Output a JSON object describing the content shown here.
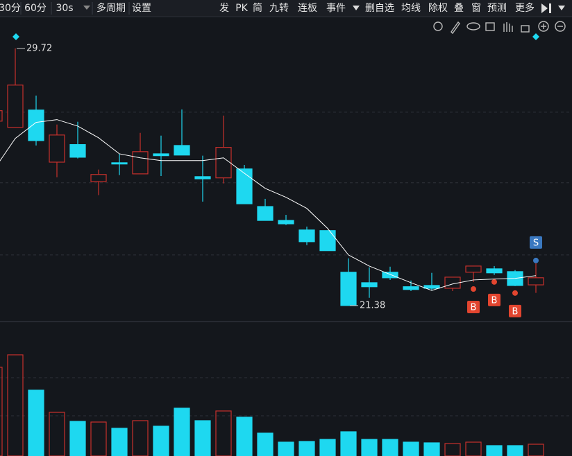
{
  "toolbar": {
    "left": [
      "30分",
      "60分",
      "30s",
      "多周期",
      "设置"
    ],
    "right": [
      "发",
      "PK",
      "简",
      "九转",
      "连板",
      "事件",
      "删自选",
      "均线",
      "除权",
      "叠",
      "窗",
      "预测",
      "更多"
    ]
  },
  "chart_data": {
    "type": "candlestick",
    "ylim": [
      20.86,
      30.39
    ],
    "ygrid": [
      27.65,
      25.36,
      23.02
    ],
    "up_color": "#c8302c",
    "down_color": "#1ed8f0",
    "candles": {
      "open": [
        27.36,
        27.16,
        27.72,
        26.03,
        26.6,
        25.4,
        26.01,
        25.65,
        26.3,
        26.57,
        25.56,
        25.52,
        25.81,
        24.59,
        24.14,
        23.83,
        23.81,
        22.46,
        22.12,
        22.46,
        21.99,
        22.03,
        21.94,
        22.46,
        22.57,
        22.48,
        22.05
      ],
      "high": [
        27.7,
        29.72,
        28.19,
        27.25,
        27.34,
        25.79,
        26.3,
        26.98,
        26.89,
        27.74,
        26.24,
        27.54,
        25.94,
        24.84,
        24.32,
        23.94,
        23.81,
        22.91,
        22.62,
        22.64,
        22.19,
        22.44,
        22.3,
        22.66,
        22.66,
        22.53,
        22.75
      ],
      "low": [
        27.36,
        27.16,
        26.57,
        25.54,
        26.15,
        24.96,
        25.61,
        25.65,
        25.58,
        26.26,
        24.75,
        25.34,
        24.68,
        24.14,
        23.99,
        23.34,
        23.16,
        21.38,
        21.63,
        22.21,
        21.85,
        21.87,
        21.85,
        22.14,
        22.37,
        22.01,
        21.79
      ],
      "close": [
        27.7,
        28.53,
        26.73,
        26.91,
        26.19,
        25.63,
        25.97,
        26.37,
        26.24,
        26.26,
        25.49,
        26.51,
        24.68,
        24.14,
        24.03,
        23.45,
        23.16,
        21.38,
        21.99,
        22.28,
        21.9,
        21.94,
        22.3,
        22.66,
        22.44,
        22.03,
        22.28
      ]
    },
    "ma": {
      "color": "#ffffff",
      "values": [
        25.81,
        26.8,
        27.32,
        27.41,
        27.2,
        26.82,
        26.3,
        26.17,
        26.08,
        26.08,
        26.08,
        26.17,
        25.67,
        25.18,
        24.89,
        24.53,
        23.88,
        23.02,
        22.66,
        22.39,
        22.12,
        21.87,
        22.08,
        22.21,
        22.24,
        22.26,
        22.35
      ]
    },
    "signals": [
      null,
      null,
      null,
      null,
      null,
      null,
      null,
      null,
      null,
      null,
      null,
      null,
      null,
      null,
      null,
      null,
      null,
      null,
      null,
      null,
      null,
      null,
      null,
      "B",
      "B",
      "B",
      "S"
    ],
    "signal_colors": {
      "B": "#e2452f",
      "S": "#3a78c0"
    },
    "volume": {
      "vlim": [
        0,
        168
      ],
      "vgrid": [
        113,
        58
      ],
      "values": [
        128,
        146,
        95,
        63,
        50,
        49,
        40,
        51,
        43,
        69,
        51,
        65,
        56,
        33,
        20,
        21,
        24,
        35,
        24,
        24,
        20,
        19,
        18,
        20,
        15,
        15,
        17
      ]
    }
  }
}
